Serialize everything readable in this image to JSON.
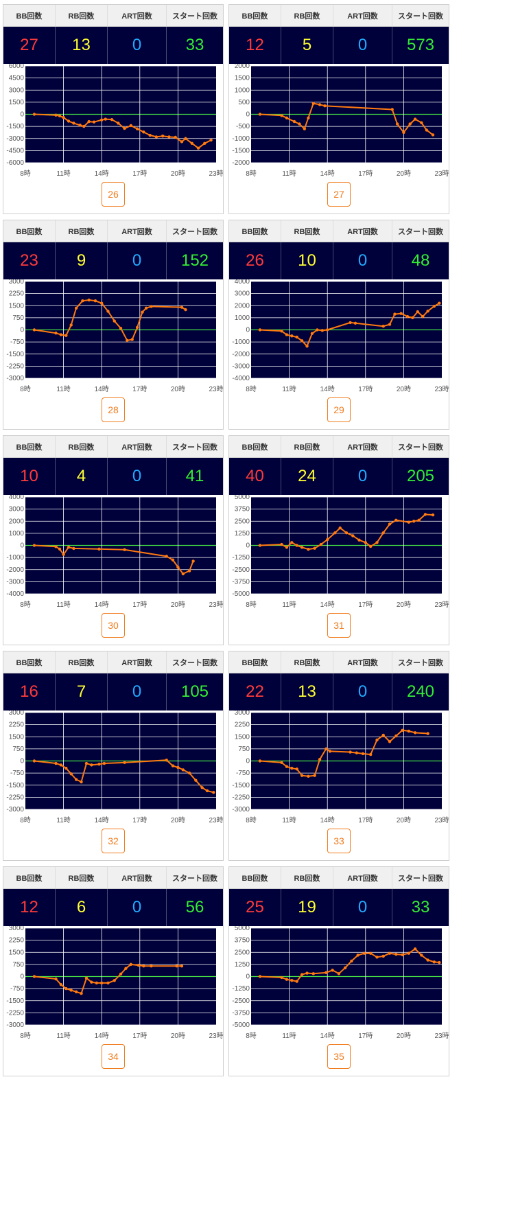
{
  "labels": {
    "bb": "BB回数",
    "rb": "RB回数",
    "art": "ART回数",
    "start": "スタート回数"
  },
  "x_ticks": [
    "8時",
    "11時",
    "14時",
    "17時",
    "20時",
    "23時"
  ],
  "colors": {
    "plot_bg": "#00003a",
    "line": "#ff7a10",
    "zero": "#44dd44",
    "bb": "#ff3b3b",
    "rb": "#ffff33",
    "art": "#22aaff",
    "start": "#33ee33",
    "button": "#f07c1e"
  },
  "chart_data": [
    {
      "type": "line",
      "machine": "26",
      "bb": 27,
      "rb": 13,
      "art": 0,
      "start": 33,
      "ylim": [
        -6000,
        6000
      ],
      "yticks": [
        6000,
        4500,
        3000,
        1500,
        0,
        -1500,
        -3000,
        -4500,
        -6000
      ],
      "xlim": [
        8,
        23
      ],
      "x": [
        8.7,
        10.4,
        10.7,
        11.0,
        11.4,
        11.8,
        12.3,
        12.6,
        13.0,
        13.4,
        14.0,
        14.3,
        14.8,
        15.3,
        15.8,
        16.3,
        16.8,
        17.3,
        17.8,
        18.3,
        18.8,
        19.3,
        19.8,
        20.3,
        20.6,
        21.1,
        21.6,
        22.1,
        22.6
      ],
      "y": [
        0,
        -100,
        -200,
        -400,
        -850,
        -1100,
        -1350,
        -1500,
        -900,
        -950,
        -700,
        -600,
        -650,
        -1100,
        -1750,
        -1400,
        -1800,
        -2200,
        -2600,
        -2800,
        -2700,
        -2800,
        -2850,
        -3400,
        -3000,
        -3600,
        -4200,
        -3600,
        -3200
      ]
    },
    {
      "type": "line",
      "machine": "27",
      "bb": 12,
      "rb": 5,
      "art": 0,
      "start": 573,
      "ylim": [
        -2000,
        2000
      ],
      "yticks": [
        2000,
        1500,
        1000,
        500,
        0,
        -500,
        -1000,
        -1500,
        -2000
      ],
      "xlim": [
        8,
        23
      ],
      "x": [
        8.7,
        10.4,
        10.8,
        11.4,
        11.8,
        12.2,
        12.5,
        12.9,
        13.4,
        13.8,
        19.1,
        19.5,
        20.0,
        20.5,
        20.9,
        21.4,
        21.8,
        22.3
      ],
      "y": [
        0,
        -50,
        -150,
        -300,
        -400,
        -600,
        -150,
        450,
        400,
        350,
        200,
        -400,
        -750,
        -400,
        -200,
        -350,
        -650,
        -850
      ]
    },
    {
      "type": "line",
      "machine": "28",
      "bb": 23,
      "rb": 9,
      "art": 0,
      "start": 152,
      "ylim": [
        -3000,
        3000
      ],
      "yticks": [
        3000,
        2250,
        1500,
        750,
        0,
        -750,
        -1500,
        -2250,
        -3000
      ],
      "xlim": [
        8,
        23
      ],
      "x": [
        8.7,
        10.4,
        10.8,
        11.2,
        11.6,
        12.0,
        12.5,
        13.0,
        13.5,
        14.0,
        14.5,
        15.0,
        15.5,
        16.0,
        16.4,
        16.8,
        17.2,
        17.5,
        17.9,
        20.3,
        20.6
      ],
      "y": [
        0,
        -200,
        -300,
        -350,
        300,
        1350,
        1800,
        1850,
        1800,
        1650,
        1150,
        550,
        100,
        -650,
        -600,
        150,
        1100,
        1350,
        1450,
        1400,
        1250
      ]
    },
    {
      "type": "line",
      "machine": "29",
      "bb": 26,
      "rb": 10,
      "art": 0,
      "start": 48,
      "ylim": [
        -4000,
        4000
      ],
      "yticks": [
        4000,
        3000,
        2000,
        1000,
        0,
        -1000,
        -2000,
        -3000,
        -4000
      ],
      "xlim": [
        8,
        23
      ],
      "x": [
        8.7,
        10.4,
        10.8,
        11.2,
        11.6,
        12.0,
        12.4,
        12.8,
        13.2,
        13.6,
        14.0,
        15.8,
        16.2,
        18.4,
        18.9,
        19.3,
        19.8,
        20.3,
        20.7,
        21.1,
        21.5,
        21.9,
        22.4,
        22.8
      ],
      "y": [
        0,
        -100,
        -400,
        -500,
        -600,
        -900,
        -1350,
        -300,
        0,
        -50,
        0,
        600,
        550,
        300,
        450,
        1300,
        1350,
        1100,
        1000,
        1500,
        1100,
        1550,
        1950,
        2200
      ]
    },
    {
      "type": "line",
      "machine": "30",
      "bb": 10,
      "rb": 4,
      "art": 0,
      "start": 41,
      "ylim": [
        -4000,
        4000
      ],
      "yticks": [
        4000,
        3000,
        2000,
        1000,
        0,
        -1000,
        -2000,
        -3000,
        -4000
      ],
      "xlim": [
        8,
        23
      ],
      "x": [
        8.7,
        10.4,
        10.7,
        11.0,
        11.4,
        11.8,
        13.8,
        15.8,
        19.1,
        19.6,
        20.0,
        20.4,
        20.9,
        21.2
      ],
      "y": [
        0,
        -100,
        -300,
        -750,
        -150,
        -250,
        -300,
        -350,
        -900,
        -1200,
        -1800,
        -2350,
        -2100,
        -1300
      ]
    },
    {
      "type": "line",
      "machine": "31",
      "bb": 40,
      "rb": 24,
      "art": 0,
      "start": 205,
      "ylim": [
        -5000,
        5000
      ],
      "yticks": [
        5000,
        3750,
        2500,
        1250,
        0,
        -1250,
        -2500,
        -3750,
        -5000
      ],
      "xlim": [
        8,
        23
      ],
      "x": [
        8.7,
        10.4,
        10.8,
        11.2,
        11.6,
        12.0,
        12.5,
        13.0,
        13.5,
        14.0,
        14.6,
        15.0,
        15.5,
        16.0,
        16.5,
        17.0,
        17.4,
        17.9,
        18.4,
        18.9,
        19.4,
        20.4,
        20.8,
        21.2,
        21.7,
        22.3
      ],
      "y": [
        0,
        100,
        -200,
        300,
        0,
        -200,
        -400,
        -300,
        100,
        600,
        1300,
        1800,
        1300,
        1000,
        550,
        300,
        -100,
        300,
        1300,
        2200,
        2600,
        2400,
        2500,
        2600,
        3200,
        3150
      ]
    },
    {
      "type": "line",
      "machine": "32",
      "bb": 16,
      "rb": 7,
      "art": 0,
      "start": 105,
      "ylim": [
        -3000,
        3000
      ],
      "yticks": [
        3000,
        2250,
        1500,
        750,
        0,
        -750,
        -1500,
        -2250,
        -3000
      ],
      "xlim": [
        8,
        23
      ],
      "x": [
        8.7,
        10.4,
        10.8,
        11.2,
        11.6,
        12.0,
        12.4,
        12.8,
        13.2,
        13.8,
        14.2,
        15.8,
        19.1,
        19.6,
        20.0,
        20.4,
        20.9,
        21.4,
        21.9,
        22.3,
        22.8
      ],
      "y": [
        0,
        -150,
        -250,
        -450,
        -800,
        -1150,
        -1300,
        -150,
        -250,
        -200,
        -150,
        -100,
        50,
        -300,
        -400,
        -550,
        -750,
        -1200,
        -1650,
        -1850,
        -1950
      ]
    },
    {
      "type": "line",
      "machine": "33",
      "bb": 22,
      "rb": 13,
      "art": 0,
      "start": 240,
      "ylim": [
        -3000,
        3000
      ],
      "yticks": [
        3000,
        2250,
        1500,
        750,
        0,
        -750,
        -1500,
        -2250,
        -3000
      ],
      "xlim": [
        8,
        23
      ],
      "x": [
        8.7,
        10.4,
        10.8,
        11.2,
        11.6,
        12.0,
        12.5,
        13.0,
        13.4,
        13.9,
        14.2,
        15.8,
        16.3,
        16.8,
        17.4,
        17.9,
        18.4,
        18.9,
        19.4,
        19.9,
        20.4,
        20.9,
        21.9
      ],
      "y": [
        0,
        -100,
        -350,
        -450,
        -500,
        -900,
        -950,
        -900,
        100,
        750,
        600,
        550,
        500,
        450,
        400,
        1300,
        1600,
        1200,
        1550,
        1900,
        1850,
        1750,
        1700
      ]
    },
    {
      "type": "line",
      "machine": "34",
      "bb": 12,
      "rb": 6,
      "art": 0,
      "start": 56,
      "ylim": [
        -3000,
        3000
      ],
      "yticks": [
        3000,
        2250,
        1500,
        750,
        0,
        -750,
        -1500,
        -2250,
        -3000
      ],
      "xlim": [
        8,
        23
      ],
      "x": [
        8.7,
        10.4,
        10.8,
        11.2,
        11.6,
        12.0,
        12.4,
        12.8,
        13.2,
        13.6,
        14.0,
        14.5,
        15.0,
        15.5,
        15.9,
        16.3,
        16.9,
        17.3,
        17.9,
        19.9,
        20.3
      ],
      "y": [
        0,
        -150,
        -500,
        -750,
        -850,
        -950,
        -1050,
        -100,
        -350,
        -400,
        -400,
        -400,
        -250,
        150,
        500,
        750,
        700,
        650,
        650,
        650,
        650
      ]
    },
    {
      "type": "line",
      "machine": "35",
      "bb": 25,
      "rb": 19,
      "art": 0,
      "start": 33,
      "ylim": [
        -5000,
        5000
      ],
      "yticks": [
        5000,
        3750,
        2500,
        1250,
        0,
        -1250,
        -2500,
        -3750,
        -5000
      ],
      "xlim": [
        8,
        23
      ],
      "x": [
        8.7,
        10.4,
        10.8,
        11.2,
        11.6,
        12.0,
        12.4,
        12.9,
        13.9,
        14.4,
        14.9,
        15.4,
        15.9,
        16.4,
        16.9,
        17.4,
        17.9,
        18.4,
        18.9,
        19.4,
        19.9,
        20.4,
        20.9,
        21.4,
        21.9,
        22.4,
        22.8
      ],
      "y": [
        0,
        -100,
        -300,
        -400,
        -500,
        200,
        350,
        300,
        400,
        650,
        300,
        900,
        1600,
        2200,
        2400,
        2400,
        2000,
        2100,
        2400,
        2300,
        2250,
        2400,
        2850,
        2200,
        1700,
        1500,
        1450
      ]
    }
  ]
}
